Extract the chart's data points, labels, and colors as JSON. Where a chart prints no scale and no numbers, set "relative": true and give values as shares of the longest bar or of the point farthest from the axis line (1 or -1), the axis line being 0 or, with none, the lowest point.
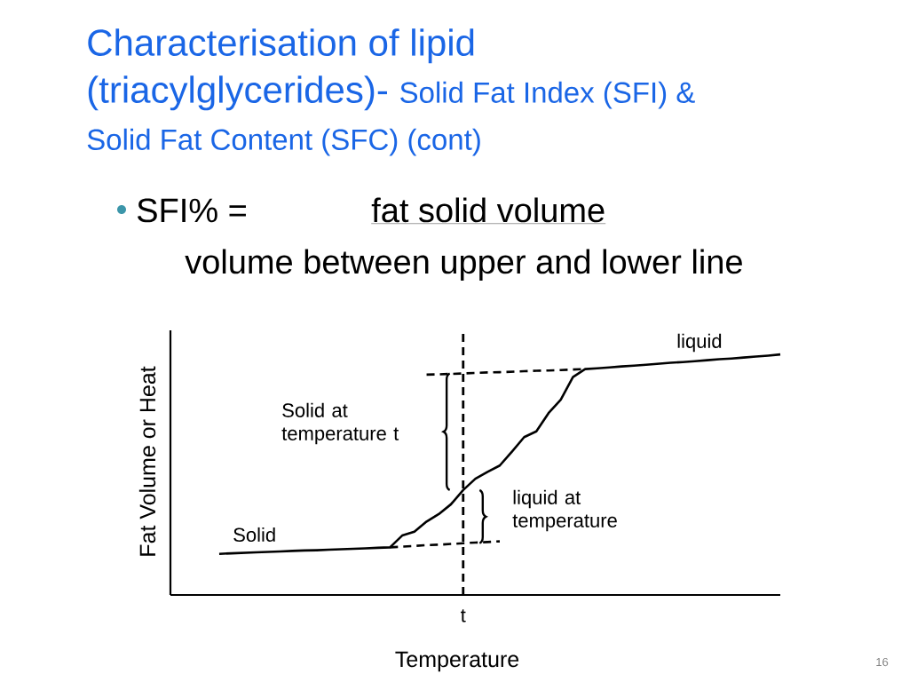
{
  "chart_data": {
    "type": "line",
    "relative": true,
    "title": "Characterisation of lipid (triacylglycerides)-",
    "subtitle": "Solid Fat Index (SFI) & Solid Fat Content (SFC) (cont)",
    "xlabel": "Temperature",
    "ylabel": "Fat Volume or Heat",
    "categories": [
      null,
      null,
      null,
      null,
      null,
      null,
      null,
      null,
      null,
      null,
      null,
      null,
      null,
      null,
      null,
      null,
      null,
      null,
      null,
      null,
      null,
      null,
      null,
      null,
      null,
      null,
      null,
      null,
      null,
      null,
      null,
      null,
      null,
      null,
      null,
      null,
      null,
      null,
      null,
      null,
      null,
      null,
      null,
      null,
      null,
      null,
      null,
      null,
      null,
      null,
      null
    ],
    "marker": "none",
    "series": [
      {
        "color": "#000000",
        "line_style": "solid",
        "values": [
          null,
          null,
          null,
          null,
          0.171,
          0.173,
          0.175,
          0.177,
          0.179,
          0.181,
          0.183,
          0.185,
          0.186,
          0.188,
          0.19,
          0.192,
          0.194,
          0.196,
          0.198,
          0.247,
          0.263,
          0.305,
          0.336,
          0.377,
          0.436,
          0.483,
          0.512,
          0.538,
          0.596,
          0.656,
          0.68,
          0.756,
          0.812,
          0.906,
          0.939,
          0.942,
          0.946,
          0.95,
          0.953,
          0.957,
          0.961,
          0.965,
          0.968,
          0.972,
          0.976,
          0.98,
          0.983,
          0.987,
          0.991,
          0.995,
          1.0
        ]
      },
      {
        "color": "#000000",
        "line_style": "dashed",
        "values": [
          null,
          null,
          null,
          null,
          null,
          null,
          null,
          null,
          null,
          null,
          null,
          null,
          null,
          null,
          null,
          null,
          null,
          null,
          null,
          null,
          null,
          0.916,
          0.917,
          0.919,
          0.921,
          0.923,
          0.925,
          0.926,
          0.928,
          0.93,
          0.932,
          0.933,
          0.935,
          0.937,
          0.939,
          null,
          null,
          null,
          null,
          null,
          null,
          null,
          null,
          null,
          null,
          null,
          null,
          null,
          null,
          null,
          null
        ]
      },
      {
        "color": "#000000",
        "line_style": "dashed",
        "values": [
          null,
          null,
          null,
          null,
          null,
          null,
          null,
          null,
          null,
          null,
          null,
          null,
          null,
          null,
          null,
          null,
          null,
          null,
          0.198,
          0.201,
          0.204,
          0.207,
          0.209,
          0.212,
          0.215,
          0.218,
          0.22,
          0.223,
          null,
          null,
          null,
          null,
          null,
          null,
          null,
          null,
          null,
          null,
          null,
          null,
          null,
          null,
          null,
          null,
          null,
          null,
          null,
          null,
          null,
          null,
          null
        ]
      }
    ],
    "annotations": [
      "SFI% =",
      "fat solid volume",
      "volume between upper and lower line",
      "liquid",
      "Solid at temperature t",
      "liquid at temperature",
      "Solid",
      "16",
      "t"
    ]
  }
}
